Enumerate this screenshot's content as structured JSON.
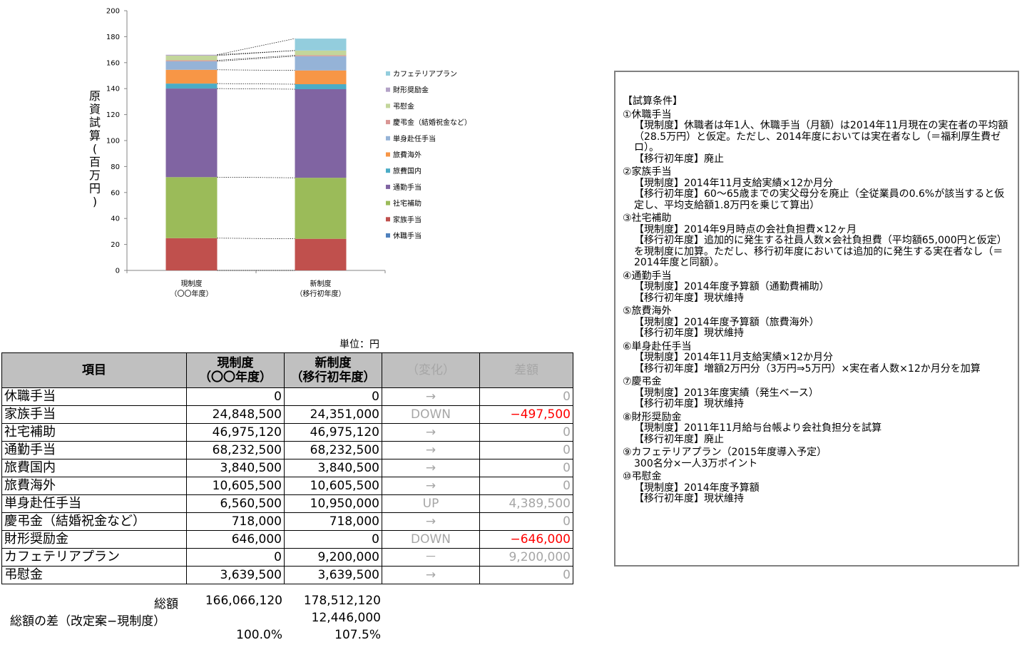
{
  "chart_data": {
    "type": "bar",
    "stacked": true,
    "ylabel": "原資試算(百万円)",
    "ylim": [
      0,
      200
    ],
    "yticks": [
      0,
      20,
      40,
      60,
      80,
      100,
      120,
      140,
      160,
      180,
      200
    ],
    "categories": [
      [
        "現制度",
        "（〇〇年度）"
      ],
      [
        "新制度",
        "（移行初年度）"
      ]
    ],
    "legend_position": "right",
    "series": [
      {
        "name": "休職手当",
        "color": "#4f81bd",
        "values": [
          0,
          0
        ]
      },
      {
        "name": "家族手当",
        "color": "#c0504d",
        "values": [
          24.85,
          24.35
        ]
      },
      {
        "name": "社宅補助",
        "color": "#9bbb59",
        "values": [
          46.98,
          46.98
        ]
      },
      {
        "name": "通勤手当",
        "color": "#8064a2",
        "values": [
          68.23,
          68.23
        ]
      },
      {
        "name": "旅費国内",
        "color": "#4bacc6",
        "values": [
          3.84,
          3.84
        ]
      },
      {
        "name": "旅費海外",
        "color": "#f79646",
        "values": [
          10.61,
          10.61
        ]
      },
      {
        "name": "単身赴任手当",
        "color": "#95b3d7",
        "values": [
          6.56,
          10.95
        ]
      },
      {
        "name": "慶弔金（結婚祝金など）",
        "color": "#d99694",
        "values": [
          0.72,
          0.72
        ]
      },
      {
        "name": "弔慰金",
        "color": "#c3d69b",
        "values": [
          3.64,
          3.64
        ]
      },
      {
        "name": "財形奨励金",
        "color": "#b3a2c7",
        "values": [
          0.65,
          0
        ]
      },
      {
        "name": "カフェテリアプラン",
        "color": "#93cddd",
        "values": [
          0,
          9.2
        ]
      }
    ],
    "legend_order": [
      "カフェテリアプラン",
      "財形奨励金",
      "弔慰金",
      "慶弔金（結婚祝金など）",
      "単身赴任手当",
      "旅費海外",
      "旅費国内",
      "通勤手当",
      "社宅補助",
      "家族手当",
      "休職手当"
    ]
  },
  "table": {
    "unit": "単位：円",
    "headers": {
      "item": "項目",
      "current": [
        "現制度",
        "（〇〇年度）"
      ],
      "new": [
        "新制度",
        "（移行初年度）"
      ],
      "change": "（変化）",
      "diff": "差額"
    },
    "rows": [
      {
        "item": "休職手当",
        "current": "0",
        "new": "0",
        "change": "→",
        "diff": "0",
        "negative": false
      },
      {
        "item": "家族手当",
        "current": "24,848,500",
        "new": "24,351,000",
        "change": "DOWN",
        "diff": "−497,500",
        "negative": true
      },
      {
        "item": "社宅補助",
        "current": "46,975,120",
        "new": "46,975,120",
        "change": "→",
        "diff": "0",
        "negative": false
      },
      {
        "item": "通勤手当",
        "current": "68,232,500",
        "new": "68,232,500",
        "change": "→",
        "diff": "0",
        "negative": false
      },
      {
        "item": "旅費国内",
        "current": "3,840,500",
        "new": "3,840,500",
        "change": "→",
        "diff": "0",
        "negative": false
      },
      {
        "item": "旅費海外",
        "current": "10,605,500",
        "new": "10,605,500",
        "change": "→",
        "diff": "0",
        "negative": false
      },
      {
        "item": "単身赴任手当",
        "current": "6,560,500",
        "new": "10,950,000",
        "change": "UP",
        "diff": "4,389,500",
        "negative": false
      },
      {
        "item": "慶弔金（結婚祝金など）",
        "current": "718,000",
        "new": "718,000",
        "change": "→",
        "diff": "0",
        "negative": false
      },
      {
        "item": "財形奨励金",
        "current": "646,000",
        "new": "0",
        "change": "DOWN",
        "diff": "−646,000",
        "negative": true
      },
      {
        "item": "カフェテリアプラン",
        "current": "0",
        "new": "9,200,000",
        "change": "－",
        "diff": "9,200,000",
        "negative": false
      },
      {
        "item": "弔慰金",
        "current": "3,639,500",
        "new": "3,639,500",
        "change": "→",
        "diff": "0",
        "negative": false
      }
    ],
    "total_label": "総額",
    "total_current": "166,066,120",
    "total_new": "178,512,120",
    "total_diff_label": "総額の差（改定案−現制度）",
    "total_diff": "12,446,000",
    "pct_current": "100.0%",
    "pct_new": "107.5%"
  },
  "conditions": {
    "title": "【試算条件】",
    "sections": [
      {
        "heading": "①休職手当",
        "lines": [
          "【現制度】休職者は年1人、休職手当（月額）は2014年11月現在の実在者の平均額（28.5万円）と仮定。ただし、2014年度においては実在者なし（＝福利厚生費ゼロ）。",
          "【移行初年度】廃止"
        ]
      },
      {
        "heading": "②家族手当",
        "lines": [
          "【現制度】2014年11月支給実績×12か月分",
          "【移行初年度】60～65歳までの実父母分を廃止（全従業員の0.6%が該当すると仮定し、平均支給額1.8万円を乗じて算出）"
        ]
      },
      {
        "heading": "③社宅補助",
        "lines": [
          "【現制度】2014年9月時点の会社負担費×12ヶ月",
          "【移行初年度】追加的に発生する社員人数×会社負担費（平均額65,000円と仮定）を現制度に加算。ただし、移行初年度においては追加的に発生する実在者なし（＝2014年度と同額）。"
        ]
      },
      {
        "heading": "④通勤手当",
        "lines": [
          "【現制度】2014年度予算額（通勤費補助）",
          "【移行初年度】現状維持"
        ]
      },
      {
        "heading": "⑤旅費海外",
        "lines": [
          "【現制度】2014年度予算額（旅費海外）",
          "【移行初年度】現状維持"
        ]
      },
      {
        "heading": "⑥単身赴任手当",
        "lines": [
          "【現制度】2014年11月支給実績×12か月分",
          "【移行初年度】増額2万円分（3万円⇒5万円）×実在者人数×12か月分を加算"
        ]
      },
      {
        "heading": "⑦慶弔金",
        "lines": [
          "【現制度】2013年度実績（発生ベース）",
          "【移行初年度】現状維持"
        ]
      },
      {
        "heading": "⑧財形奨励金",
        "lines": [
          "【現制度】2011年11月給与台帳より会社負担分を試算",
          "【移行初年度】廃止"
        ]
      },
      {
        "heading": "⑨カフェテリアプラン（2015年度導入予定）",
        "lines": [
          "300名分×一人3万ポイント"
        ]
      },
      {
        "heading": "⑩弔慰金",
        "lines": [
          "【現制度】2014年度予算額",
          "【移行初年度】現状維持"
        ]
      }
    ]
  }
}
